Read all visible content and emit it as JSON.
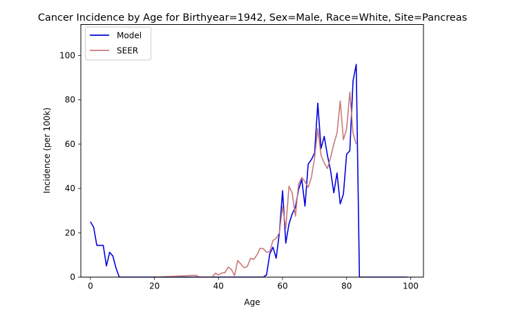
{
  "chart_data": {
    "type": "line",
    "title": "Cancer Incidence by Age for Birthyear=1942, Sex=Male, Race=White, Site=Pancreas",
    "xlabel": "Age",
    "ylabel": "Incidence (per 100k)",
    "xlim": [
      -3,
      104
    ],
    "ylim": [
      0,
      114
    ],
    "xticks": [
      0,
      20,
      40,
      60,
      80,
      100
    ],
    "yticks": [
      0,
      20,
      40,
      60,
      80,
      100
    ],
    "grid": false,
    "legend_position": "top-left",
    "series": [
      {
        "name": "Model",
        "color": "#0000dd",
        "x": [
          0,
          1,
          2,
          3,
          4,
          5,
          6,
          7,
          8,
          9,
          10,
          11,
          12,
          13,
          14,
          15,
          16,
          17,
          18,
          19,
          20,
          21,
          22,
          23,
          24,
          25,
          26,
          27,
          28,
          29,
          30,
          31,
          32,
          33,
          34,
          35,
          36,
          37,
          38,
          39,
          40,
          41,
          42,
          43,
          44,
          45,
          46,
          47,
          48,
          49,
          50,
          51,
          52,
          53,
          54,
          55,
          56,
          57,
          58,
          59,
          60,
          61,
          62,
          63,
          64,
          65,
          66,
          67,
          68,
          69,
          70,
          71,
          72,
          73,
          74,
          75,
          76,
          77,
          78,
          79,
          80,
          81,
          82,
          83,
          84,
          85,
          86,
          87,
          88,
          89,
          90,
          91,
          92,
          93,
          94,
          95,
          96,
          97,
          98,
          99
        ],
        "y": [
          25,
          22.5,
          14.3,
          14.3,
          14.3,
          5,
          11.2,
          9.5,
          4,
          0,
          0,
          0,
          0,
          0,
          0,
          0,
          0,
          0,
          0,
          0,
          0,
          0,
          0,
          0,
          0,
          0,
          0,
          0,
          0,
          0,
          0,
          0,
          0,
          0,
          0,
          0,
          0,
          0,
          0,
          0,
          0,
          0,
          0,
          0,
          0,
          0,
          0,
          0,
          0,
          0,
          0,
          0,
          0,
          0,
          0,
          1,
          10.5,
          13.5,
          8.5,
          20,
          39,
          15.3,
          24,
          28.5,
          31.5,
          39.5,
          44,
          32,
          51,
          53,
          56,
          78.5,
          58,
          63.5,
          55,
          48,
          38,
          47,
          33,
          37.5,
          55.5,
          57,
          88.5,
          96,
          0,
          0,
          0,
          0,
          0,
          0,
          0,
          0,
          0,
          0,
          0,
          0,
          0,
          0,
          0,
          0
        ]
      },
      {
        "name": "SEER",
        "color": "#c87878",
        "x": [
          20,
          33,
          34,
          38,
          39,
          40,
          41,
          42,
          43,
          44,
          45,
          46,
          47,
          48,
          49,
          50,
          51,
          52,
          53,
          54,
          55,
          56,
          57,
          58,
          59,
          60,
          61,
          62,
          63,
          64,
          65,
          66,
          67,
          68,
          69,
          70,
          71,
          72,
          73,
          74,
          75,
          76,
          77,
          78,
          79,
          80,
          81,
          82,
          83
        ],
        "y": [
          0,
          0.8,
          0,
          0,
          1.8,
          1,
          1.8,
          2,
          4.5,
          3.5,
          0.7,
          7.5,
          5.8,
          4.2,
          4.8,
          8.5,
          8,
          10,
          13,
          12.8,
          11.2,
          11.5,
          16.5,
          17.5,
          20,
          32,
          22,
          41,
          38,
          27.5,
          42,
          45,
          43,
          40.5,
          45,
          54,
          67,
          55,
          51.5,
          49,
          54,
          60,
          65,
          79.5,
          62,
          67,
          83.5,
          65,
          60
        ]
      }
    ]
  }
}
